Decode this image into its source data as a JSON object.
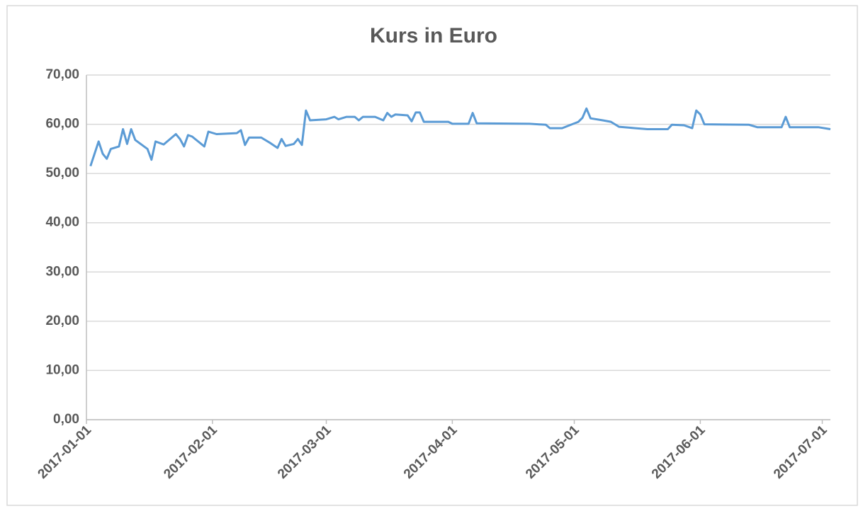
{
  "chart_data": {
    "type": "line",
    "title": "Kurs in Euro",
    "x": [
      "2017-01-02",
      "2017-01-04",
      "2017-01-05",
      "2017-01-06",
      "2017-01-07",
      "2017-01-09",
      "2017-01-10",
      "2017-01-11",
      "2017-01-12",
      "2017-01-13",
      "2017-01-16",
      "2017-01-17",
      "2017-01-18",
      "2017-01-20",
      "2017-01-23",
      "2017-01-24",
      "2017-01-25",
      "2017-01-26",
      "2017-01-27",
      "2017-01-30",
      "2017-01-31",
      "2017-02-02",
      "2017-02-07",
      "2017-02-08",
      "2017-02-09",
      "2017-02-10",
      "2017-02-13",
      "2017-02-15",
      "2017-02-17",
      "2017-02-18",
      "2017-02-19",
      "2017-02-21",
      "2017-02-22",
      "2017-02-23",
      "2017-02-24",
      "2017-02-25",
      "2017-03-01",
      "2017-03-03",
      "2017-03-04",
      "2017-03-06",
      "2017-03-08",
      "2017-03-09",
      "2017-03-10",
      "2017-03-13",
      "2017-03-15",
      "2017-03-16",
      "2017-03-17",
      "2017-03-18",
      "2017-03-21",
      "2017-03-22",
      "2017-03-23",
      "2017-03-24",
      "2017-03-25",
      "2017-03-31",
      "2017-04-01",
      "2017-04-05",
      "2017-04-06",
      "2017-04-07",
      "2017-04-20",
      "2017-04-24",
      "2017-04-25",
      "2017-04-28",
      "2017-05-02",
      "2017-05-03",
      "2017-05-04",
      "2017-05-05",
      "2017-05-08",
      "2017-05-10",
      "2017-05-12",
      "2017-05-16",
      "2017-05-19",
      "2017-05-24",
      "2017-05-25",
      "2017-05-28",
      "2017-05-30",
      "2017-05-31",
      "2017-06-01",
      "2017-06-02",
      "2017-06-13",
      "2017-06-15",
      "2017-06-21",
      "2017-06-22",
      "2017-06-23",
      "2017-06-30",
      "2017-07-03"
    ],
    "values": [
      51.5,
      56.5,
      54.0,
      53.0,
      55.0,
      55.5,
      59.0,
      56.0,
      59.0,
      56.8,
      55.0,
      52.8,
      56.5,
      55.9,
      58.0,
      57.0,
      55.5,
      57.8,
      57.5,
      55.5,
      58.5,
      58.0,
      58.2,
      58.8,
      55.8,
      57.3,
      57.3,
      56.3,
      55.2,
      57.0,
      55.6,
      56.0,
      57.0,
      55.8,
      62.8,
      60.8,
      61.0,
      61.5,
      61.0,
      61.5,
      61.5,
      60.8,
      61.5,
      61.5,
      60.8,
      62.3,
      61.5,
      62.0,
      61.8,
      60.6,
      62.4,
      62.4,
      60.5,
      60.5,
      60.1,
      60.1,
      62.3,
      60.2,
      60.1,
      59.9,
      59.2,
      59.2,
      60.5,
      61.3,
      63.2,
      61.2,
      60.8,
      60.5,
      59.5,
      59.2,
      59.0,
      59.0,
      59.9,
      59.8,
      59.2,
      62.8,
      62.0,
      60.0,
      59.9,
      59.4,
      59.4,
      61.5,
      59.4,
      59.4,
      59.0
    ],
    "color": "#5b9bd5",
    "xlim": [
      "2017-01-01",
      "2017-07-03"
    ],
    "xticks": [
      "2017-01-01",
      "2017-02-01",
      "2017-03-01",
      "2017-04-01",
      "2017-05-01",
      "2017-06-01",
      "2017-07-01"
    ],
    "ylim": [
      0,
      70
    ],
    "yticks": [
      {
        "value": 0,
        "label": "0,00"
      },
      {
        "value": 10,
        "label": "10,00"
      },
      {
        "value": 20,
        "label": "20,00"
      },
      {
        "value": 30,
        "label": "30,00"
      },
      {
        "value": 40,
        "label": "40,00"
      },
      {
        "value": 50,
        "label": "50,00"
      },
      {
        "value": 60,
        "label": "60,00"
      },
      {
        "value": 70,
        "label": "70,00"
      }
    ],
    "grid": true
  }
}
